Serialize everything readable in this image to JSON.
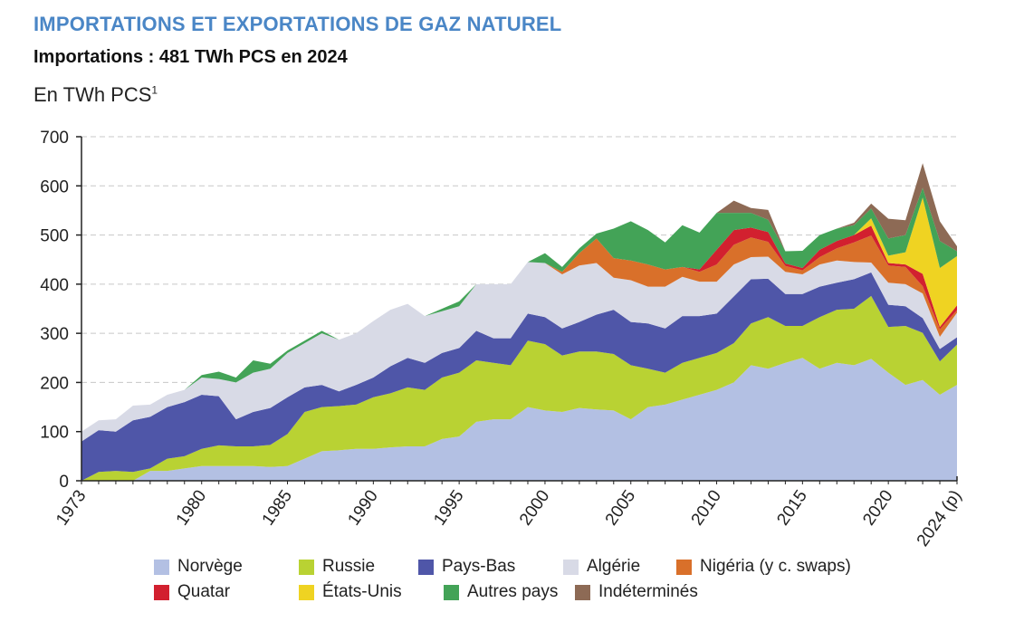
{
  "header": {
    "title": "IMPORTATIONS ET EXPORTATIONS DE GAZ NATUREL",
    "subtitle": "Importations : 481 TWh PCS en 2024",
    "unit_label": "En TWh PCS",
    "unit_footnote": "1"
  },
  "colors": {
    "title": "#4a86c6",
    "Norvège": "#b3c0e3",
    "Russie": "#b9d233",
    "Pays-Bas": "#4f56a8",
    "Algérie": "#d8dae6",
    "Nigéria (y c. swaps)": "#d9702a",
    "Quatar": "#d2202f",
    "États-Unis": "#efd322",
    "Autres pays": "#43a357",
    "Indéterminés": "#8d6a55"
  },
  "chart_data": {
    "type": "area",
    "stacked": true,
    "title": "IMPORTATIONS ET EXPORTATIONS DE GAZ NATUREL",
    "ylabel": "En TWh PCS",
    "ylim": [
      0,
      700
    ],
    "yticks": [
      0,
      100,
      200,
      300,
      400,
      500,
      600,
      700
    ],
    "grid": true,
    "x": [
      1973,
      1974,
      1975,
      1976,
      1977,
      1978,
      1979,
      1980,
      1981,
      1982,
      1983,
      1984,
      1985,
      1986,
      1987,
      1988,
      1989,
      1990,
      1991,
      1992,
      1993,
      1994,
      1995,
      1996,
      1997,
      1998,
      1999,
      2000,
      2001,
      2002,
      2003,
      2004,
      2005,
      2006,
      2007,
      2008,
      2009,
      2010,
      2011,
      2012,
      2013,
      2014,
      2015,
      2016,
      2017,
      2018,
      2019,
      2020,
      2021,
      2022,
      2023,
      2024
    ],
    "xtick_labels": [
      "1973",
      "1980",
      "1985",
      "1990",
      "1995",
      "2000",
      "2005",
      "2010",
      "2015",
      "2020",
      "2024 (p)"
    ],
    "xtick_years": [
      1973,
      1980,
      1985,
      1990,
      1995,
      2000,
      2005,
      2010,
      2015,
      2020,
      2024
    ],
    "series": [
      {
        "name": "Norvège",
        "values": [
          0,
          0,
          0,
          0,
          20,
          20,
          25,
          30,
          30,
          30,
          30,
          28,
          30,
          45,
          60,
          62,
          65,
          65,
          68,
          70,
          70,
          85,
          90,
          120,
          125,
          125,
          150,
          143,
          140,
          148,
          145,
          143,
          125,
          150,
          155,
          165,
          175,
          185,
          200,
          235,
          228,
          240,
          250,
          228,
          240,
          235,
          248,
          220,
          195,
          205,
          175,
          195
        ]
      },
      {
        "name": "Russie",
        "values": [
          0,
          18,
          20,
          18,
          5,
          25,
          25,
          35,
          42,
          40,
          40,
          45,
          65,
          95,
          90,
          90,
          90,
          105,
          110,
          120,
          115,
          125,
          130,
          125,
          115,
          110,
          135,
          135,
          115,
          115,
          118,
          115,
          110,
          78,
          65,
          75,
          75,
          75,
          80,
          85,
          105,
          75,
          65,
          105,
          108,
          115,
          128,
          93,
          120,
          96,
          68,
          82
        ]
      },
      {
        "name": "Pays-Bas",
        "values": [
          80,
          85,
          80,
          105,
          105,
          105,
          110,
          110,
          100,
          55,
          70,
          75,
          75,
          50,
          45,
          30,
          40,
          40,
          55,
          60,
          55,
          50,
          50,
          60,
          50,
          55,
          55,
          55,
          55,
          60,
          75,
          90,
          88,
          92,
          90,
          95,
          85,
          80,
          95,
          90,
          78,
          65,
          65,
          62,
          55,
          60,
          48,
          45,
          40,
          30,
          25,
          15
        ]
      },
      {
        "name": "Algérie",
        "values": [
          20,
          20,
          25,
          30,
          25,
          25,
          25,
          35,
          35,
          75,
          80,
          80,
          90,
          90,
          105,
          105,
          105,
          115,
          115,
          110,
          95,
          85,
          85,
          95,
          110,
          110,
          105,
          110,
          110,
          115,
          105,
          65,
          85,
          75,
          85,
          80,
          70,
          65,
          65,
          45,
          45,
          45,
          40,
          45,
          45,
          35,
          20,
          45,
          45,
          50,
          25,
          50
        ]
      },
      {
        "name": "Nigéria (y c. swaps)",
        "values": [
          0,
          0,
          0,
          0,
          0,
          0,
          0,
          0,
          0,
          0,
          0,
          0,
          0,
          0,
          0,
          0,
          0,
          0,
          0,
          0,
          0,
          0,
          0,
          0,
          0,
          0,
          0,
          0,
          5,
          25,
          50,
          40,
          40,
          45,
          35,
          20,
          20,
          35,
          40,
          40,
          30,
          12,
          8,
          15,
          25,
          40,
          55,
          35,
          35,
          15,
          15,
          5
        ]
      },
      {
        "name": "Quatar",
        "values": [
          0,
          0,
          0,
          0,
          0,
          0,
          0,
          0,
          0,
          0,
          0,
          0,
          0,
          0,
          0,
          0,
          0,
          0,
          0,
          0,
          0,
          0,
          0,
          0,
          0,
          0,
          0,
          0,
          0,
          0,
          0,
          0,
          0,
          0,
          0,
          0,
          5,
          30,
          30,
          20,
          20,
          5,
          5,
          15,
          15,
          15,
          20,
          5,
          5,
          25,
          5,
          10
        ]
      },
      {
        "name": "États-Unis",
        "values": [
          0,
          0,
          0,
          0,
          0,
          0,
          0,
          0,
          0,
          0,
          0,
          0,
          0,
          0,
          0,
          0,
          0,
          0,
          0,
          0,
          0,
          0,
          0,
          0,
          0,
          0,
          0,
          0,
          0,
          0,
          0,
          0,
          0,
          0,
          0,
          0,
          0,
          0,
          0,
          0,
          0,
          0,
          0,
          0,
          0,
          0,
          15,
          15,
          25,
          155,
          120,
          100
        ]
      },
      {
        "name": "Autres pays",
        "values": [
          0,
          0,
          0,
          0,
          0,
          0,
          0,
          5,
          15,
          10,
          25,
          10,
          5,
          5,
          5,
          0,
          0,
          0,
          0,
          0,
          0,
          5,
          10,
          0,
          0,
          0,
          0,
          20,
          10,
          10,
          10,
          60,
          80,
          70,
          55,
          85,
          75,
          75,
          35,
          30,
          25,
          25,
          35,
          30,
          25,
          20,
          20,
          35,
          35,
          20,
          55,
          10
        ]
      },
      {
        "name": "Indéterminés",
        "values": [
          0,
          0,
          0,
          0,
          0,
          0,
          0,
          0,
          0,
          0,
          0,
          0,
          0,
          0,
          0,
          0,
          0,
          0,
          0,
          0,
          0,
          0,
          0,
          0,
          0,
          0,
          0,
          0,
          0,
          0,
          0,
          0,
          0,
          0,
          0,
          0,
          0,
          0,
          25,
          10,
          20,
          0,
          0,
          0,
          0,
          5,
          10,
          40,
          30,
          50,
          40,
          10
        ]
      }
    ]
  },
  "legend": {
    "rows": [
      [
        "Norvège",
        "Russie",
        "Pays-Bas",
        "Algérie",
        "Nigéria (y c. swaps)"
      ],
      [
        "Quatar",
        "États-Unis",
        "Autres pays",
        "Indéterminés"
      ]
    ]
  }
}
